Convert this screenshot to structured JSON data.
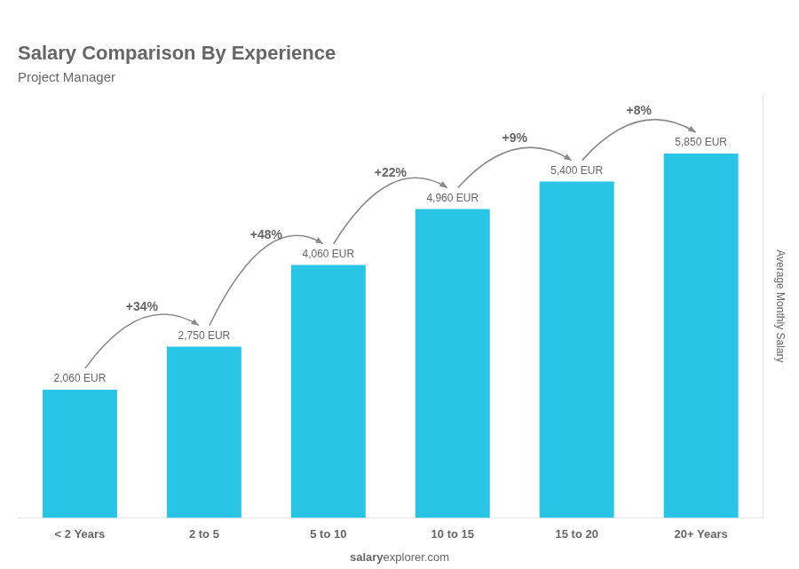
{
  "chart_data": {
    "type": "bar",
    "title": "Salary Comparison By Experience",
    "subtitle": "Project Manager",
    "categories": [
      "< 2 Years",
      "2 to 5",
      "5 to 10",
      "10 to 15",
      "15 to 20",
      "20+ Years"
    ],
    "values": [
      2060,
      2750,
      4060,
      4960,
      5400,
      5850
    ],
    "value_labels": [
      "2,060 EUR",
      "2,750 EUR",
      "4,060 EUR",
      "4,960 EUR",
      "5,400 EUR",
      "5,850 EUR"
    ],
    "data_labels": true,
    "pct_changes": [
      null,
      "+34%",
      "+48%",
      "+22%",
      "+9%",
      "+8%"
    ],
    "y_label": "Average Monthly Salary",
    "watermark": [
      "salary",
      "explorer.com"
    ],
    "color": "#29c5e6",
    "ylim": [
      0,
      6800
    ],
    "tick_labels": "x",
    "grid": false
  }
}
